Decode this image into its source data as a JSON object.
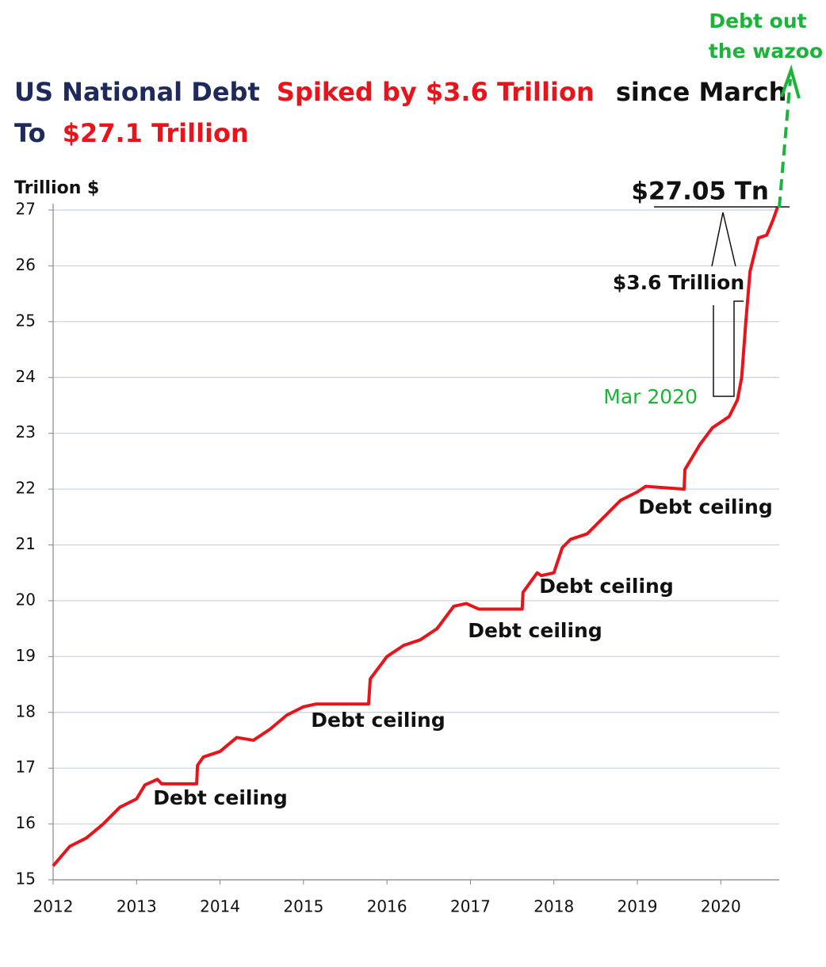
{
  "chart_data": {
    "type": "line",
    "title_line1": [
      "US National Debt",
      "Spiked by $3.6 Trillion",
      "since March"
    ],
    "title_line2": [
      "To",
      "$27.1 Trillion"
    ],
    "y_label": "Trillion $",
    "annotations": {
      "total": "$27.05 Tn",
      "spike": "$3.6 Trillion",
      "start": "Mar 2020",
      "wazoo": [
        "Debt out",
        "the wazoo"
      ],
      "ceilings": [
        "Debt ceiling",
        "Debt ceiling",
        "Debt ceiling",
        "Debt ceiling",
        "Debt ceiling"
      ]
    },
    "x": [
      2012.0,
      2012.2,
      2012.4,
      2012.6,
      2012.8,
      2013.0,
      2013.1,
      2013.25,
      2013.3,
      2013.72,
      2013.73,
      2013.8,
      2014.0,
      2014.2,
      2014.4,
      2014.6,
      2014.8,
      2015.0,
      2015.15,
      2015.78,
      2015.8,
      2016.0,
      2016.2,
      2016.4,
      2016.6,
      2016.8,
      2016.95,
      2017.1,
      2017.62,
      2017.63,
      2017.8,
      2017.85,
      2018.0,
      2018.1,
      2018.2,
      2018.4,
      2018.6,
      2018.8,
      2019.0,
      2019.1,
      2019.56,
      2019.57,
      2019.75,
      2019.9,
      2020.1,
      2020.2,
      2020.25,
      2020.3,
      2020.35,
      2020.45,
      2020.55,
      2020.62,
      2020.68
    ],
    "values": [
      15.25,
      15.6,
      15.75,
      16.0,
      16.3,
      16.45,
      16.7,
      16.8,
      16.72,
      16.72,
      17.05,
      17.2,
      17.3,
      17.55,
      17.5,
      17.7,
      17.95,
      18.1,
      18.15,
      18.15,
      18.6,
      19.0,
      19.2,
      19.3,
      19.5,
      19.9,
      19.95,
      19.85,
      19.85,
      20.15,
      20.5,
      20.45,
      20.5,
      20.95,
      21.1,
      21.2,
      21.5,
      21.8,
      21.95,
      22.05,
      22.0,
      22.35,
      22.8,
      23.1,
      23.3,
      23.6,
      24.0,
      25.0,
      25.9,
      26.5,
      26.55,
      26.8,
      27.05
    ],
    "color": "#e8141b",
    "xlim": [
      2012,
      2020.7
    ],
    "ylim": [
      15,
      27
    ],
    "xticks": [
      2012,
      2013,
      2014,
      2015,
      2016,
      2017,
      2018,
      2019,
      2020
    ],
    "yticks": [
      15,
      16,
      17,
      18,
      19,
      20,
      21,
      22,
      23,
      24,
      25,
      26,
      27
    ],
    "grid": true
  }
}
